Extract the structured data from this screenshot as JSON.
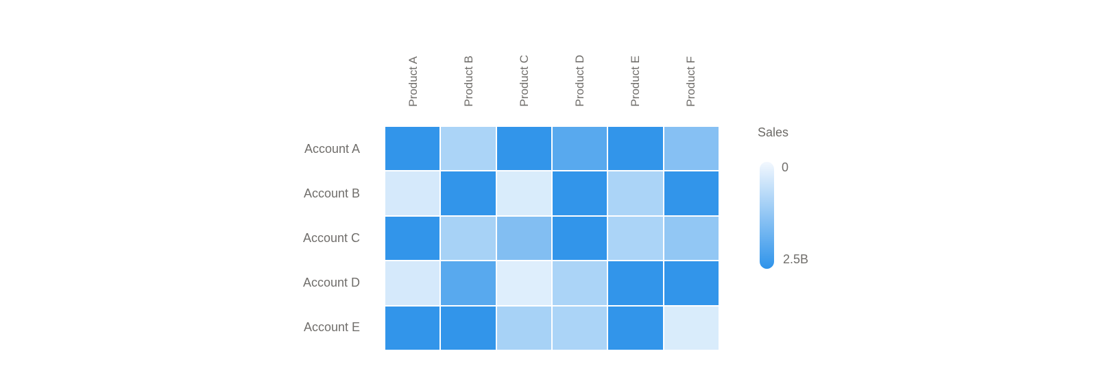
{
  "chart_data": {
    "type": "heatmap",
    "columns": [
      "Product A",
      "Product B",
      "Product C",
      "Product D",
      "Product E",
      "Product F"
    ],
    "rows": [
      "Account A",
      "Account B",
      "Account C",
      "Account D",
      "Account E"
    ],
    "values_billions": [
      [
        2.45,
        1.0,
        2.45,
        2.0,
        2.45,
        1.45
      ],
      [
        0.5,
        2.45,
        0.45,
        2.45,
        1.0,
        2.45
      ],
      [
        2.45,
        1.05,
        1.5,
        2.45,
        1.0,
        1.3
      ],
      [
        0.5,
        2.0,
        0.4,
        1.0,
        2.45,
        2.45
      ],
      [
        2.45,
        2.45,
        1.05,
        1.0,
        2.45,
        0.45
      ]
    ],
    "legend": {
      "title": "Sales",
      "min_label": "0",
      "max_label": "2.5B",
      "min": 0,
      "max": 2.5,
      "gradient_top_color": "#F3F8FE"
    },
    "color_scale": {
      "min_color": "#FFFFFF",
      "max_color": "#2E93EA"
    },
    "layout": {
      "grid_on": false,
      "legend_position": "right",
      "column_labels_rotated": true
    }
  }
}
